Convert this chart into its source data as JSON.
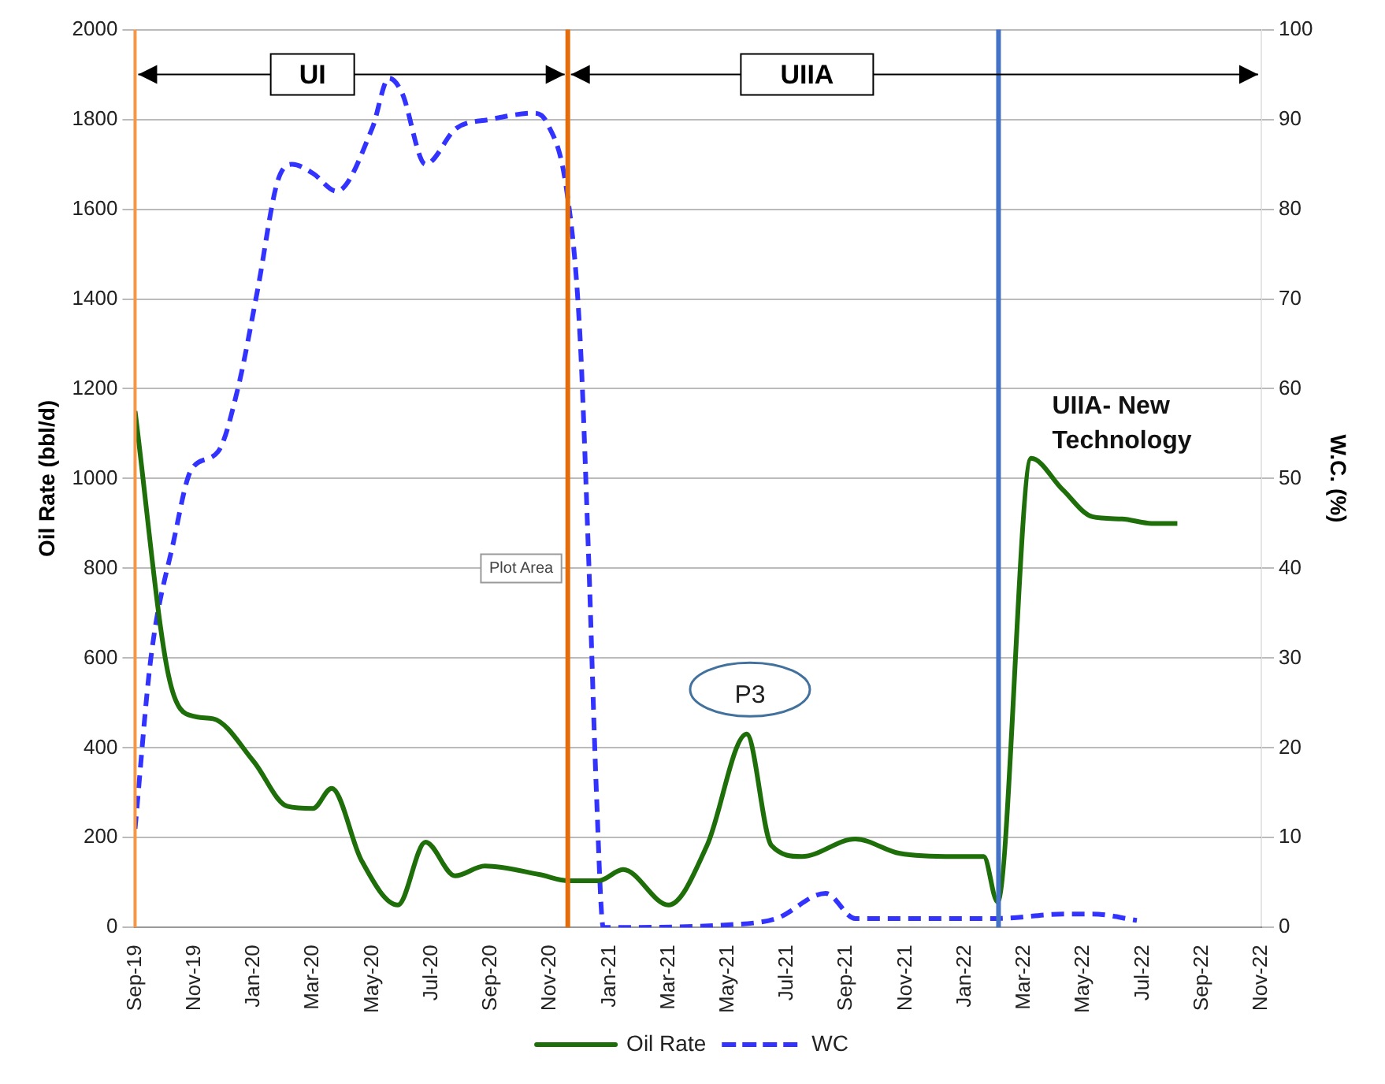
{
  "chart_data": {
    "type": "line",
    "xlabel": null,
    "ylabel": "Oil Rate (bbl/d)",
    "y2label": "W.C. (%)",
    "xlim": [
      "2019-09",
      "2022-11"
    ],
    "xticks": [
      {
        "value": "2019-09",
        "label": "Sep-19"
      },
      {
        "value": "2019-11",
        "label": "Nov-19"
      },
      {
        "value": "2020-01",
        "label": "Jan-20"
      },
      {
        "value": "2020-03",
        "label": "Mar-20"
      },
      {
        "value": "2020-05",
        "label": "May-20"
      },
      {
        "value": "2020-07",
        "label": "Jul-20"
      },
      {
        "value": "2020-09",
        "label": "Sep-20"
      },
      {
        "value": "2020-11",
        "label": "Nov-20"
      },
      {
        "value": "2021-01",
        "label": "Jan-21"
      },
      {
        "value": "2021-03",
        "label": "Mar-21"
      },
      {
        "value": "2021-05",
        "label": "May-21"
      },
      {
        "value": "2021-07",
        "label": "Jul-21"
      },
      {
        "value": "2021-09",
        "label": "Sep-21"
      },
      {
        "value": "2021-11",
        "label": "Nov-21"
      },
      {
        "value": "2022-01",
        "label": "Jan-22"
      },
      {
        "value": "2022-03",
        "label": "Mar-22"
      },
      {
        "value": "2022-05",
        "label": "May-22"
      },
      {
        "value": "2022-07",
        "label": "Jul-22"
      },
      {
        "value": "2022-09",
        "label": "Sep-22"
      },
      {
        "value": "2022-11",
        "label": "Nov-22"
      }
    ],
    "ylim": [
      0,
      2000
    ],
    "yticks": [
      0,
      200,
      400,
      600,
      800,
      1000,
      1200,
      1400,
      1600,
      1800,
      2000
    ],
    "y2lim": [
      0,
      100
    ],
    "y2ticks": [
      0,
      10,
      20,
      30,
      40,
      50,
      60,
      70,
      80,
      90,
      100
    ],
    "grid": "y",
    "legend": "bottom",
    "marker": "none",
    "series": [
      {
        "name": "Oil Rate",
        "color": "#1e6e0a",
        "line_style": "solid",
        "x": [
          "2019-09-01",
          "2019-10-05",
          "2019-11-01",
          "2019-11-20",
          "2020-01-01",
          "2020-02-05",
          "2020-03-01",
          "2020-03-20",
          "2020-04-20",
          "2020-05-27",
          "2020-06-25",
          "2020-07-25",
          "2020-08-25",
          "2020-10-20",
          "2020-11-20",
          "2020-12-20",
          "2021-01-15",
          "2021-03-01",
          "2021-04-10",
          "2021-05-20",
          "2021-06-15",
          "2021-07-16",
          "2021-09-10",
          "2021-10-25",
          "2021-12-20",
          "2022-01-20",
          "2022-02-04",
          "2022-03-08",
          "2022-04-10",
          "2022-05-10",
          "2022-06-10",
          "2022-07-10",
          "2022-08-06"
        ],
        "values": [
          1150,
          560,
          470,
          465,
          370,
          270,
          265,
          310,
          150,
          50,
          190,
          115,
          137,
          118,
          104,
          104,
          129,
          50,
          183,
          431,
          183,
          158,
          197,
          165,
          158,
          158,
          57,
          1045,
          975,
          915,
          910,
          900,
          900
        ]
      },
      {
        "name": "WC",
        "color": "#3333ff",
        "line_style": "dashed",
        "axis": "y2",
        "x": [
          "2019-09-01",
          "2019-09-17",
          "2019-10-10",
          "2019-10-28",
          "2019-11-25",
          "2019-12-15",
          "2020-01-05",
          "2020-01-25",
          "2020-02-10",
          "2020-03-01",
          "2020-03-25",
          "2020-05-01",
          "2020-05-18",
          "2020-06-01",
          "2020-06-25",
          "2020-07-26",
          "2020-09-01",
          "2020-10-15",
          "2020-10-28",
          "2020-11-18",
          "2020-12-01",
          "2020-12-10",
          "2020-12-18",
          "2020-12-25",
          "2021-05-01",
          "2021-06-20",
          "2021-08-10",
          "2021-09-10",
          "2022-02-04",
          "2022-04-10",
          "2022-05-10",
          "2022-06-25"
        ],
        "values": [
          11,
          30,
          43,
          51,
          53,
          60,
          71,
          83,
          85,
          84,
          82,
          89,
          94.6,
          93,
          85,
          89,
          90,
          90.7,
          89.6,
          82,
          66.6,
          41.5,
          15,
          0,
          0.3,
          1,
          3.8,
          1,
          1,
          1.5,
          1.5,
          0.8
        ]
      }
    ],
    "ref_lines": [
      {
        "axis": "x",
        "value": "2019-09-01",
        "color": "#f79646"
      },
      {
        "axis": "x",
        "value": "2020-11-19",
        "color": "#e46c0a"
      },
      {
        "axis": "x",
        "value": "2022-02-05",
        "color": "#4472c4"
      }
    ],
    "annotations": [
      {
        "text": "UI",
        "x": "2020-11-19",
        "y": 1900
      },
      "UIIA",
      "P3",
      "UIIA- New Technology",
      "Plot Area"
    ]
  }
}
